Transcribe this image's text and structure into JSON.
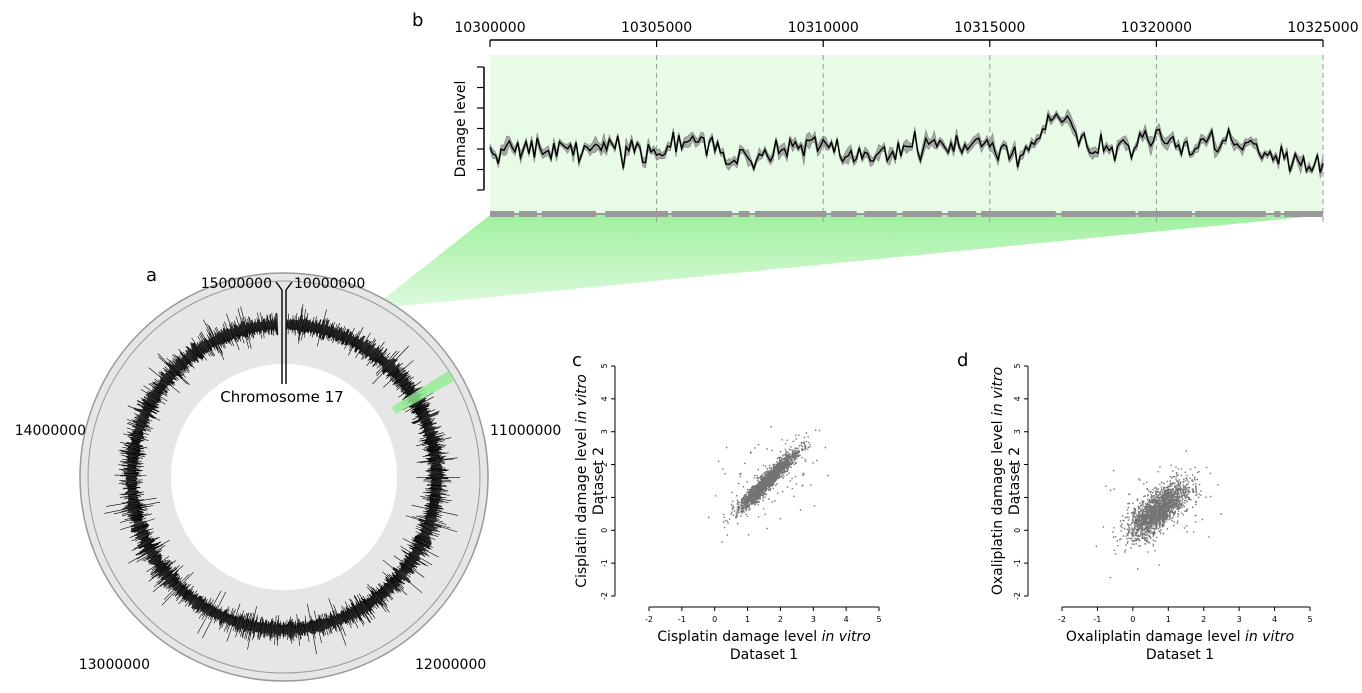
{
  "panel_labels": {
    "a": "a",
    "b": "b",
    "c": "c",
    "d": "d"
  },
  "colors": {
    "highlight": "#90ee90",
    "ring": "#e0e0e0",
    "band": "#999999",
    "signal": "#000000"
  },
  "chart_data": [
    {
      "id": "a",
      "type": "line",
      "layout": "circular",
      "center_label": "Chromosome 17",
      "position_labels": [
        "10000000",
        "11000000",
        "12000000",
        "13000000",
        "14000000",
        "15000000"
      ],
      "position_values": [
        10000000,
        11000000,
        12000000,
        13000000,
        14000000,
        15000000
      ],
      "range": [
        10000000,
        15000000
      ],
      "highlight_region": [
        10300000,
        10325000
      ]
    },
    {
      "id": "b",
      "type": "line",
      "xlabel": "",
      "ylabel": "Damage level",
      "xlim": [
        10300000,
        10325000
      ],
      "x_tick_labels": [
        "10300000",
        "10305000",
        "10310000",
        "10315000",
        "10320000",
        "10325000"
      ],
      "x_tick_values": [
        10300000,
        10305000,
        10310000,
        10315000,
        10320000,
        10325000
      ],
      "ylim": [
        0,
        6
      ],
      "grid": "dashed vertical",
      "series_band": true,
      "x": [
        10300000,
        10301000,
        10302000,
        10303000,
        10304000,
        10305000,
        10306000,
        10307000,
        10308000,
        10309000,
        10310000,
        10311000,
        10312000,
        10313000,
        10314000,
        10315000,
        10316000,
        10317000,
        10318000,
        10319000,
        10320000,
        10321000,
        10322000,
        10323000,
        10324000,
        10325000
      ],
      "values": [
        2.1,
        2.0,
        1.9,
        2.3,
        2.1,
        1.8,
        2.4,
        1.9,
        1.6,
        2.0,
        2.2,
        1.6,
        1.9,
        2.3,
        2.1,
        2.2,
        1.7,
        3.8,
        1.9,
        2.1,
        2.6,
        2.0,
        2.5,
        1.9,
        1.4,
        1.3
      ]
    },
    {
      "id": "c",
      "type": "scatter",
      "xlabel": "Cisplatin damage level in vitro",
      "xlabel_sub": "Dataset 1",
      "ylabel": "Cisplatin damage level in vitro",
      "ylabel_sub": "Dataset 2",
      "xlim": [
        -2,
        5
      ],
      "ylim": [
        -2,
        5
      ],
      "x_ticks": [
        "-2",
        "-1",
        "0",
        "1",
        "2",
        "3",
        "4",
        "5"
      ],
      "y_ticks": [
        "-2",
        "-1",
        "0",
        "1",
        "2",
        "3",
        "4",
        "5"
      ],
      "cloud": {
        "center": [
          1.6,
          1.5
        ],
        "spread": 0.8,
        "correlation": 0.95
      }
    },
    {
      "id": "d",
      "type": "scatter",
      "xlabel": "Oxaliplatin damage level in vitro",
      "xlabel_sub": "Dataset 1",
      "ylabel": "Oxaliplatin damage level in vitro",
      "ylabel_sub": "Dataset 2",
      "xlim": [
        -2,
        5
      ],
      "ylim": [
        -2,
        5
      ],
      "x_ticks": [
        "-2",
        "-1",
        "0",
        "1",
        "2",
        "3",
        "4",
        "5"
      ],
      "y_ticks": [
        "-2",
        "-1",
        "0",
        "1",
        "2",
        "3",
        "4",
        "5"
      ],
      "cloud": {
        "center": [
          0.7,
          0.6
        ],
        "spread": 0.75,
        "correlation": 0.7
      }
    }
  ]
}
